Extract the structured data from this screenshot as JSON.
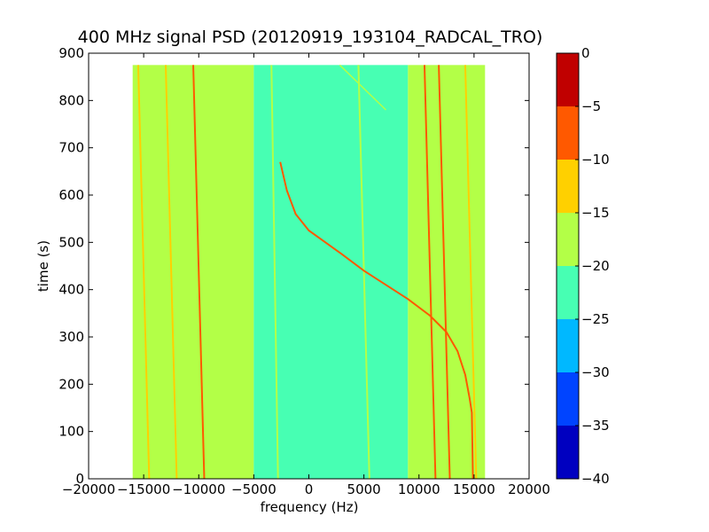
{
  "chart_data": {
    "type": "heatmap",
    "title": "400 MHz signal PSD (20120919_193104_RADCAL_TRO)",
    "xlabel": "frequency (Hz)",
    "ylabel": "time (s)",
    "xlim": [
      -20000,
      20000
    ],
    "ylim": [
      0,
      900
    ],
    "x_ticks": [
      -20000,
      -15000,
      -10000,
      -5000,
      0,
      5000,
      10000,
      15000,
      20000
    ],
    "y_ticks": [
      0,
      100,
      200,
      300,
      400,
      500,
      600,
      700,
      800,
      900
    ],
    "data_extent": {
      "x": [
        -16000,
        16000
      ],
      "y": [
        0,
        875
      ]
    },
    "background_levels": [
      {
        "x": [
          -16000,
          -5000
        ],
        "level": -17.5
      },
      {
        "x": [
          -5000,
          9000
        ],
        "level": -22.5
      },
      {
        "x": [
          9000,
          16000
        ],
        "level": -17.5
      }
    ],
    "vertical_traces": [
      {
        "points": [
          [
            -14500,
            0
          ],
          [
            -15500,
            875
          ]
        ],
        "level": -12.5
      },
      {
        "points": [
          [
            -12000,
            0
          ],
          [
            -13000,
            875
          ]
        ],
        "level": -12.5
      },
      {
        "points": [
          [
            -9500,
            0
          ],
          [
            -10500,
            875
          ]
        ],
        "level": -7.5
      },
      {
        "points": [
          [
            -2800,
            0
          ],
          [
            -3400,
            875
          ]
        ],
        "level": -17.5
      },
      {
        "points": [
          [
            5500,
            0
          ],
          [
            4500,
            875
          ]
        ],
        "level": -17.5
      },
      {
        "points": [
          [
            11500,
            0
          ],
          [
            10500,
            875
          ]
        ],
        "level": -7.5
      },
      {
        "points": [
          [
            12800,
            0
          ],
          [
            11800,
            875
          ]
        ],
        "level": -7.5
      },
      {
        "points": [
          [
            15200,
            0
          ],
          [
            14200,
            875
          ]
        ],
        "level": -12.5
      }
    ],
    "chirp_trace": {
      "points": [
        [
          -2600,
          670
        ],
        [
          -2000,
          610
        ],
        [
          -1200,
          560
        ],
        [
          0,
          525
        ],
        [
          1500,
          500
        ],
        [
          3000,
          475
        ],
        [
          5000,
          440
        ],
        [
          7000,
          410
        ],
        [
          9000,
          380
        ],
        [
          11000,
          345
        ],
        [
          12500,
          310
        ],
        [
          13500,
          270
        ],
        [
          14200,
          220
        ],
        [
          14600,
          170
        ],
        [
          14800,
          140
        ],
        [
          14900,
          0
        ]
      ],
      "level": -7.5
    },
    "faint_trace": {
      "points": [
        [
          2800,
          875
        ],
        [
          7000,
          780
        ]
      ],
      "level": -17.5
    },
    "colorbar": {
      "ticks": [
        0,
        -5,
        -10,
        -15,
        -20,
        -25,
        -30,
        -35,
        -40
      ],
      "range": [
        -40,
        0
      ],
      "bands": [
        {
          "from": -40,
          "to": -35,
          "color": "#0000c0"
        },
        {
          "from": -35,
          "to": -30,
          "color": "#0044ff"
        },
        {
          "from": -30,
          "to": -25,
          "color": "#00b8ff"
        },
        {
          "from": -25,
          "to": -20,
          "color": "#47ffb3"
        },
        {
          "from": -20,
          "to": -15,
          "color": "#b3ff47"
        },
        {
          "from": -15,
          "to": -10,
          "color": "#ffd000"
        },
        {
          "from": -10,
          "to": -5,
          "color": "#ff5900"
        },
        {
          "from": -5,
          "to": 0,
          "color": "#c00000"
        }
      ]
    },
    "grid": false
  }
}
